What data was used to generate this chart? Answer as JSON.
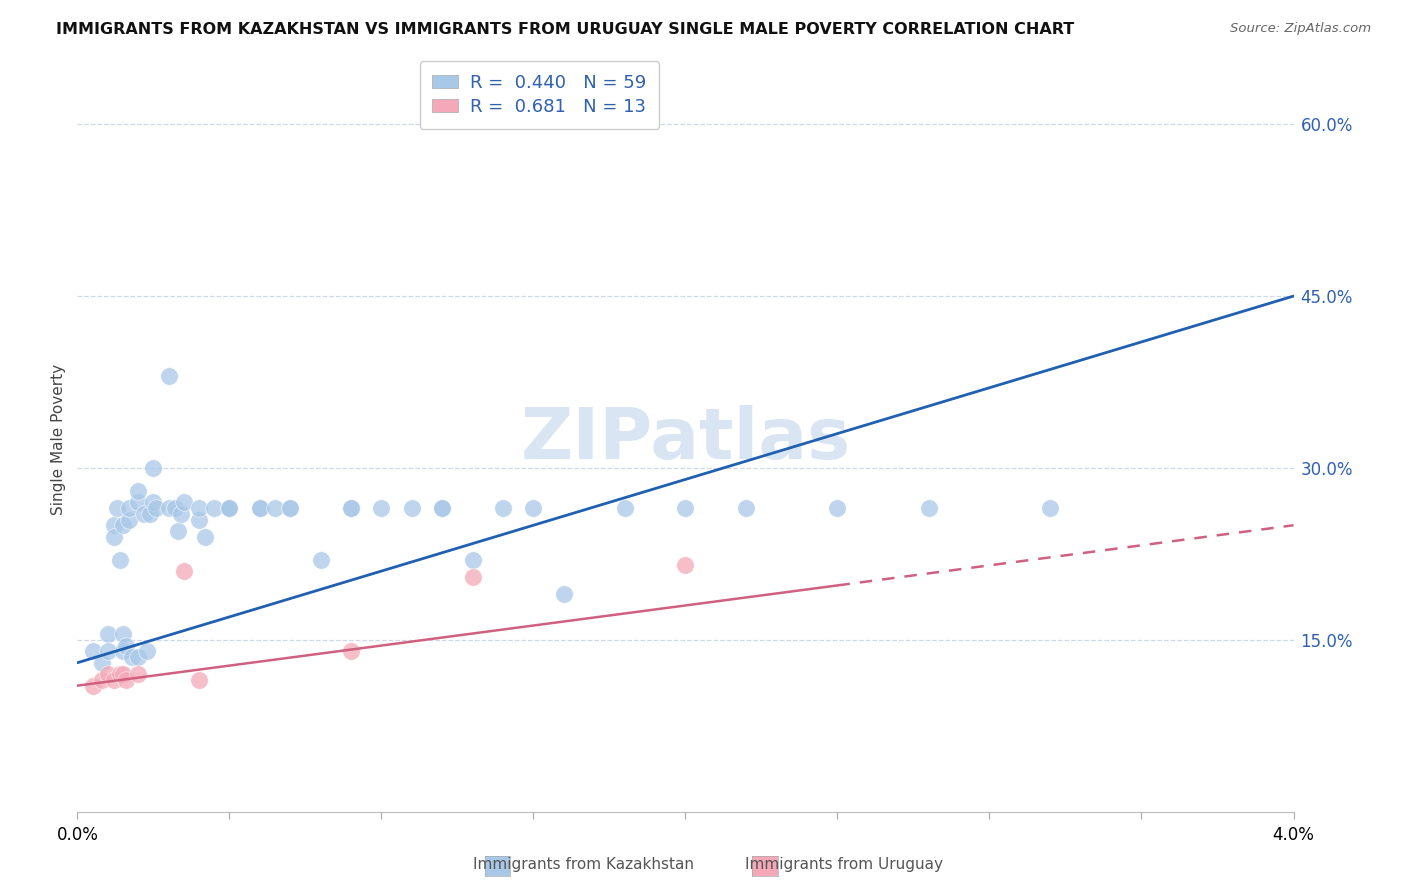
{
  "title": "IMMIGRANTS FROM KAZAKHSTAN VS IMMIGRANTS FROM URUGUAY SINGLE MALE POVERTY CORRELATION CHART",
  "source": "Source: ZipAtlas.com",
  "ylabel": "Single Male Poverty",
  "r_kaz": 0.44,
  "n_kaz": 59,
  "r_uru": 0.681,
  "n_uru": 13,
  "kaz_color": "#a8c8e8",
  "uru_color": "#f4a8b8",
  "kaz_line_color": "#2060b0",
  "uru_line_color": "#d06080",
  "watermark_color": "#c5d8ee",
  "kaz_x": [
    0.0005,
    0.0008,
    0.001,
    0.001,
    0.0012,
    0.0012,
    0.0013,
    0.0014,
    0.0015,
    0.0015,
    0.0015,
    0.0016,
    0.0017,
    0.0017,
    0.0018,
    0.002,
    0.002,
    0.002,
    0.0022,
    0.0023,
    0.0024,
    0.0025,
    0.0025,
    0.0026,
    0.003,
    0.003,
    0.0032,
    0.0033,
    0.0034,
    0.0035,
    0.004,
    0.004,
    0.0042,
    0.0045,
    0.005,
    0.005,
    0.005,
    0.006,
    0.006,
    0.0065,
    0.007,
    0.007,
    0.008,
    0.009,
    0.009,
    0.01,
    0.011,
    0.012,
    0.012,
    0.013,
    0.014,
    0.015,
    0.016,
    0.018,
    0.02,
    0.022,
    0.025,
    0.028,
    0.032
  ],
  "kaz_y": [
    0.14,
    0.13,
    0.155,
    0.14,
    0.25,
    0.24,
    0.265,
    0.22,
    0.155,
    0.14,
    0.25,
    0.145,
    0.255,
    0.265,
    0.135,
    0.27,
    0.28,
    0.135,
    0.26,
    0.14,
    0.26,
    0.3,
    0.27,
    0.265,
    0.38,
    0.265,
    0.265,
    0.245,
    0.26,
    0.27,
    0.255,
    0.265,
    0.24,
    0.265,
    0.265,
    0.265,
    0.265,
    0.265,
    0.265,
    0.265,
    0.265,
    0.265,
    0.22,
    0.265,
    0.265,
    0.265,
    0.265,
    0.265,
    0.265,
    0.22,
    0.265,
    0.265,
    0.19,
    0.265,
    0.265,
    0.265,
    0.265,
    0.265,
    0.265
  ],
  "uru_x": [
    0.0005,
    0.0008,
    0.001,
    0.0012,
    0.0014,
    0.0015,
    0.0016,
    0.002,
    0.0035,
    0.004,
    0.009,
    0.013,
    0.02
  ],
  "uru_y": [
    0.11,
    0.115,
    0.12,
    0.115,
    0.12,
    0.12,
    0.115,
    0.12,
    0.21,
    0.115,
    0.14,
    0.205,
    0.215
  ],
  "xlim": [
    0.0,
    0.04
  ],
  "ylim": [
    0.0,
    0.65
  ],
  "yticks": [
    0.15,
    0.3,
    0.45,
    0.6
  ],
  "ytick_labels": [
    "15.0%",
    "30.0%",
    "45.0%",
    "60.0%"
  ],
  "background_color": "#ffffff",
  "grid_color": "#d0d8e8"
}
